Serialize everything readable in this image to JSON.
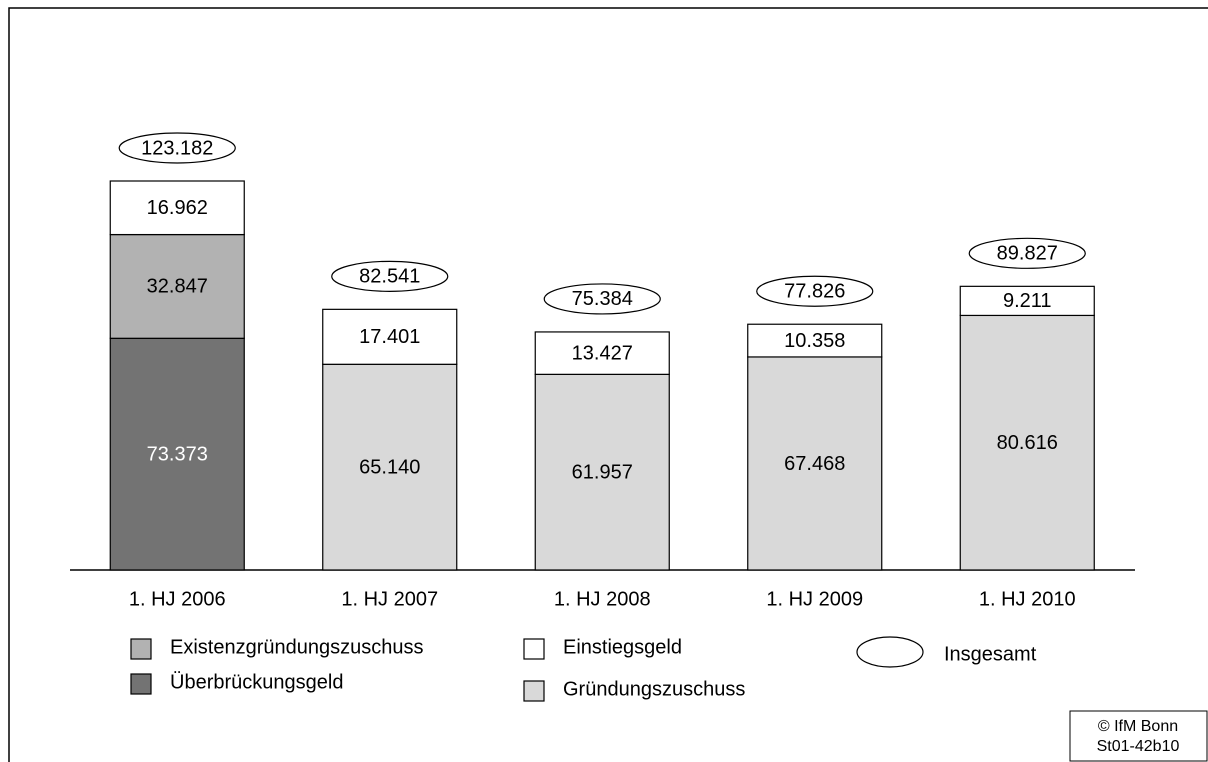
{
  "chart_data": {
    "type": "stacked-bar",
    "categories": [
      "1. HJ 2006",
      "1. HJ 2007",
      "1. HJ 2008",
      "1. HJ 2009",
      "1. HJ 2010"
    ],
    "series": [
      {
        "name": "Überbrückungsgeld",
        "color": "#737373",
        "label_color": "#ffffff",
        "values": [
          73373,
          null,
          null,
          null,
          null
        ],
        "value_labels": [
          "73.373",
          null,
          null,
          null,
          null
        ]
      },
      {
        "name": "Existenzgründungszuschuss",
        "color": "#b2b2b2",
        "label_color": "#000000",
        "values": [
          32847,
          null,
          null,
          null,
          null
        ],
        "value_labels": [
          "32.847",
          null,
          null,
          null,
          null
        ]
      },
      {
        "name": "Gründungszuschuss",
        "color": "#d9d9d9",
        "label_color": "#000000",
        "values": [
          null,
          65140,
          61957,
          67468,
          80616
        ],
        "value_labels": [
          null,
          "65.140",
          "61.957",
          "67.468",
          "80.616"
        ]
      },
      {
        "name": "Einstiegsgeld",
        "color": "#ffffff",
        "label_color": "#000000",
        "values": [
          16962,
          17401,
          13427,
          10358,
          9211
        ],
        "value_labels": [
          "16.962",
          "17.401",
          "13.427",
          "10.358",
          "9.211"
        ]
      }
    ],
    "totals": {
      "name": "Insgesamt",
      "values": [
        123182,
        82541,
        75384,
        77826,
        89827
      ],
      "value_labels": [
        "123.182",
        "82.541",
        "75.384",
        "77.826",
        "89.827"
      ]
    },
    "source": [
      "© IfM Bonn",
      "St01-42b10"
    ]
  }
}
